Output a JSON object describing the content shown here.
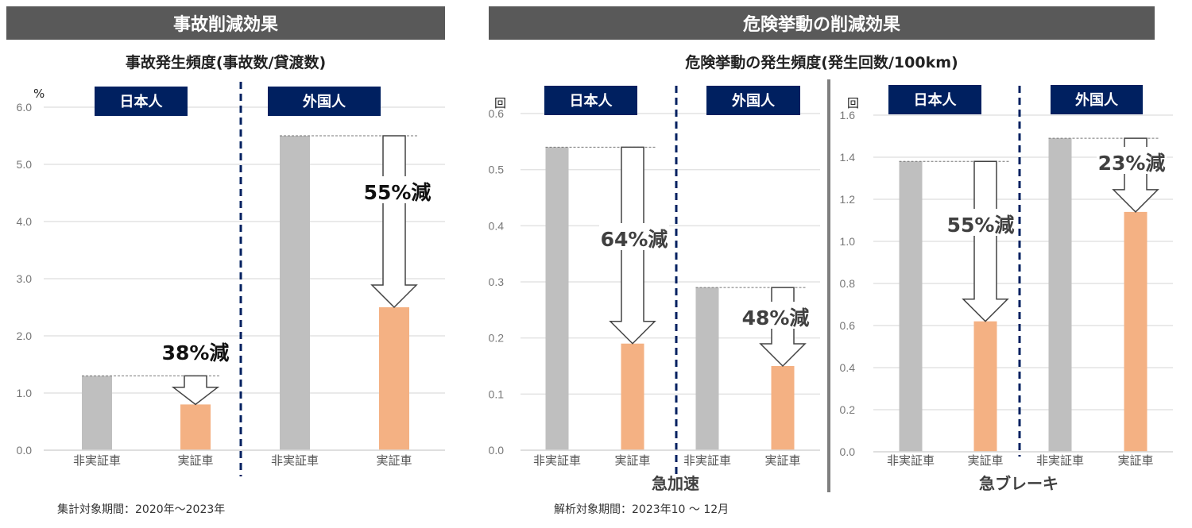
{
  "left_section": {
    "title": "事故削減効果",
    "subtitle": "事故発生頻度(事故数/貸渡数)",
    "footnote": "集計対象期間：2020年～2023年"
  },
  "right_section": {
    "title": "危険挙動の削減効果",
    "subtitle": "危険挙動の発生頻度(発生回数/100km)",
    "footnote": "解析対象期間：2023年10 ～ 12月"
  },
  "colors": {
    "non_test_vehicle": "#bfbfbf",
    "test_vehicle": "#f4b183",
    "group_label_bg": "#002060",
    "title_bg": "#595959",
    "divider": "#002060"
  },
  "chart_data": [
    {
      "type": "bar",
      "title": "事故発生頻度(事故数/貸渡数)",
      "xlabel": "",
      "ylabel": "%",
      "ylim": [
        0,
        6.0
      ],
      "yticks": [
        "0.0",
        "1.0",
        "2.0",
        "3.0",
        "4.0",
        "5.0",
        "6.0"
      ],
      "grid": true,
      "groups": [
        {
          "label": "日本人",
          "categories": [
            "非実証車",
            "実証車"
          ],
          "values": [
            1.3,
            0.8
          ],
          "reduction": "38%減"
        },
        {
          "label": "外国人",
          "categories": [
            "非実証車",
            "実証車"
          ],
          "values": [
            5.5,
            2.5
          ],
          "reduction": "55%減"
        }
      ]
    },
    {
      "type": "bar",
      "xlabel": "急加速",
      "ylabel": "回",
      "ylim": [
        0,
        0.6
      ],
      "yticks": [
        "0.0",
        "0.1",
        "0.2",
        "0.3",
        "0.4",
        "0.5",
        "0.6"
      ],
      "grid": true,
      "groups": [
        {
          "label": "日本人",
          "categories": [
            "非実証車",
            "実証車"
          ],
          "values": [
            0.54,
            0.19
          ],
          "reduction": "64%減"
        },
        {
          "label": "外国人",
          "categories": [
            "非実証車",
            "実証車"
          ],
          "values": [
            0.29,
            0.15
          ],
          "reduction": "48%減"
        }
      ]
    },
    {
      "type": "bar",
      "xlabel": "急ブレーキ",
      "ylabel": "回",
      "ylim": [
        0,
        1.6
      ],
      "yticks": [
        "0.0",
        "0.2",
        "0.4",
        "0.6",
        "0.8",
        "1.0",
        "1.2",
        "1.4",
        "1.6"
      ],
      "grid": true,
      "groups": [
        {
          "label": "日本人",
          "categories": [
            "非実証車",
            "実証車"
          ],
          "values": [
            1.38,
            0.62
          ],
          "reduction": "55%減"
        },
        {
          "label": "外国人",
          "categories": [
            "非実証車",
            "実証車"
          ],
          "values": [
            1.49,
            1.14
          ],
          "reduction": "23%減"
        }
      ]
    }
  ]
}
